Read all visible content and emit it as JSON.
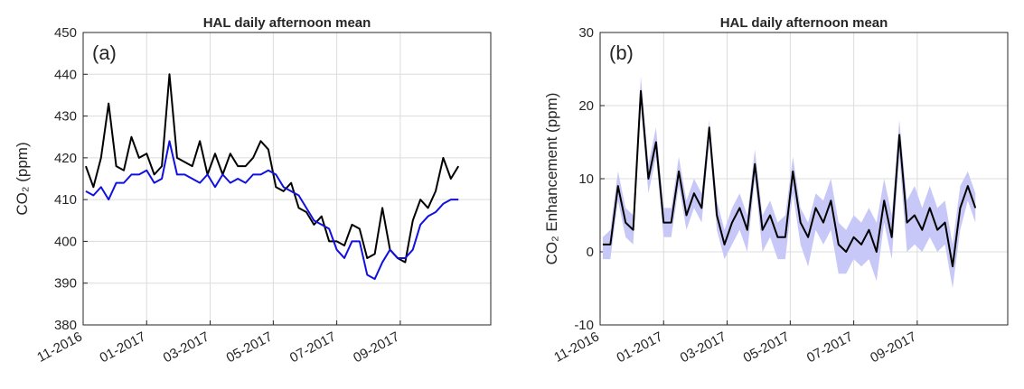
{
  "chart_data": [
    {
      "type": "line",
      "title": "HAL daily afternoon mean",
      "panel_label": "(a)",
      "y_label": "CO₂ (ppm)",
      "x": [
        2016.84,
        2016.86,
        2016.88,
        2016.9,
        2016.92,
        2016.94,
        2016.96,
        2016.98,
        2017.0,
        2017.02,
        2017.04,
        2017.06,
        2017.08,
        2017.1,
        2017.12,
        2017.14,
        2017.16,
        2017.18,
        2017.2,
        2017.22,
        2017.24,
        2017.26,
        2017.28,
        2017.3,
        2017.32,
        2017.34,
        2017.36,
        2017.38,
        2017.4,
        2017.42,
        2017.44,
        2017.46,
        2017.48,
        2017.5,
        2017.52,
        2017.54,
        2017.56,
        2017.58,
        2017.6,
        2017.62,
        2017.64,
        2017.66,
        2017.68,
        2017.7,
        2017.72,
        2017.74,
        2017.76,
        2017.78,
        2017.8,
        2017.82
      ],
      "series": [
        {
          "color": "#000000",
          "values": [
            418,
            413,
            420,
            433,
            418,
            417,
            425,
            420,
            421,
            416,
            418,
            440,
            420,
            419,
            418,
            424,
            416,
            421,
            416,
            421,
            418,
            418,
            420,
            424,
            422,
            413,
            412,
            414,
            408,
            407,
            404,
            406,
            400,
            400,
            399,
            404,
            403,
            396,
            397,
            408,
            398,
            396,
            395,
            405,
            410,
            408,
            412,
            420,
            415,
            418
          ]
        },
        {
          "color": "#1010e0",
          "values": [
            412,
            411,
            413,
            410,
            414,
            414,
            416,
            416,
            417,
            414,
            415,
            424,
            416,
            416,
            415,
            414,
            416,
            413,
            416,
            414,
            415,
            414,
            416,
            416,
            417,
            416,
            413,
            412,
            411,
            408,
            405,
            404,
            403,
            398,
            396,
            400,
            400,
            392,
            391,
            395,
            398,
            396,
            396,
            398,
            404,
            406,
            407,
            409,
            410,
            410
          ]
        }
      ],
      "xlim": [
        2016.833,
        2017.905
      ],
      "xticks": [
        {
          "value": 2016.833,
          "label": "11-2016"
        },
        {
          "value": 2017.0,
          "label": "01-2017"
        },
        {
          "value": 2017.167,
          "label": "03-2017"
        },
        {
          "value": 2017.333,
          "label": "05-2017"
        },
        {
          "value": 2017.5,
          "label": "07-2017"
        },
        {
          "value": 2017.667,
          "label": "09-2017"
        }
      ],
      "ylim": [
        380,
        450
      ],
      "yticks": [
        380,
        390,
        400,
        410,
        420,
        430,
        440,
        450
      ],
      "grid": true
    },
    {
      "type": "line",
      "title": "HAL daily afternoon mean",
      "panel_label": "(b)",
      "y_label": "CO₂ Enhancement (ppm)",
      "x": [
        2016.84,
        2016.86,
        2016.88,
        2016.9,
        2016.92,
        2016.94,
        2016.96,
        2016.98,
        2017.0,
        2017.02,
        2017.04,
        2017.06,
        2017.08,
        2017.1,
        2017.12,
        2017.14,
        2017.16,
        2017.18,
        2017.2,
        2017.22,
        2017.24,
        2017.26,
        2017.28,
        2017.3,
        2017.32,
        2017.34,
        2017.36,
        2017.38,
        2017.4,
        2017.42,
        2017.44,
        2017.46,
        2017.48,
        2017.5,
        2017.52,
        2017.54,
        2017.56,
        2017.58,
        2017.6,
        2017.62,
        2017.64,
        2017.66,
        2017.68,
        2017.7,
        2017.72,
        2017.74,
        2017.76,
        2017.78,
        2017.8,
        2017.82
      ],
      "series": [
        {
          "color": "#000000",
          "band_color": "#c8c8f8",
          "values": [
            1,
            1,
            9,
            4,
            3,
            22,
            10,
            15,
            4,
            4,
            11,
            5,
            8,
            6,
            17,
            5,
            1,
            4,
            6,
            3,
            12,
            3,
            5,
            2,
            2,
            11,
            4,
            2,
            6,
            4,
            7,
            1,
            0,
            2,
            1,
            3,
            0,
            7,
            2,
            16,
            4,
            5,
            3,
            6,
            3,
            4,
            -2,
            6,
            9,
            6
          ],
          "upper": [
            2,
            3,
            11,
            6,
            5,
            24,
            12,
            17,
            6,
            6,
            13,
            7,
            10,
            8,
            18,
            7,
            3,
            6,
            8,
            5,
            14,
            5,
            7,
            4,
            5,
            13,
            6,
            4,
            8,
            7,
            10,
            4,
            3,
            5,
            4,
            6,
            4,
            10,
            5,
            18,
            7,
            9,
            6,
            9,
            6,
            7,
            1,
            9,
            11,
            8
          ],
          "lower": [
            -1,
            -1,
            7,
            2,
            1,
            20,
            8,
            13,
            2,
            2,
            9,
            3,
            6,
            4,
            15,
            3,
            -1,
            1,
            3,
            0,
            10,
            0,
            2,
            -1,
            -1,
            8,
            1,
            -2,
            3,
            1,
            3,
            -3,
            -3,
            -1,
            -2,
            -1,
            -4,
            4,
            -1,
            13,
            0,
            1,
            0,
            2,
            0,
            1,
            -5,
            3,
            7,
            4
          ]
        }
      ],
      "xlim": [
        2016.833,
        2017.905
      ],
      "xticks": [
        {
          "value": 2016.833,
          "label": "11-2016"
        },
        {
          "value": 2017.0,
          "label": "01-2017"
        },
        {
          "value": 2017.167,
          "label": "03-2017"
        },
        {
          "value": 2017.333,
          "label": "05-2017"
        },
        {
          "value": 2017.5,
          "label": "07-2017"
        },
        {
          "value": 2017.667,
          "label": "09-2017"
        }
      ],
      "ylim": [
        -10,
        30
      ],
      "yticks": [
        -10,
        0,
        10,
        20,
        30
      ],
      "grid": true
    }
  ]
}
